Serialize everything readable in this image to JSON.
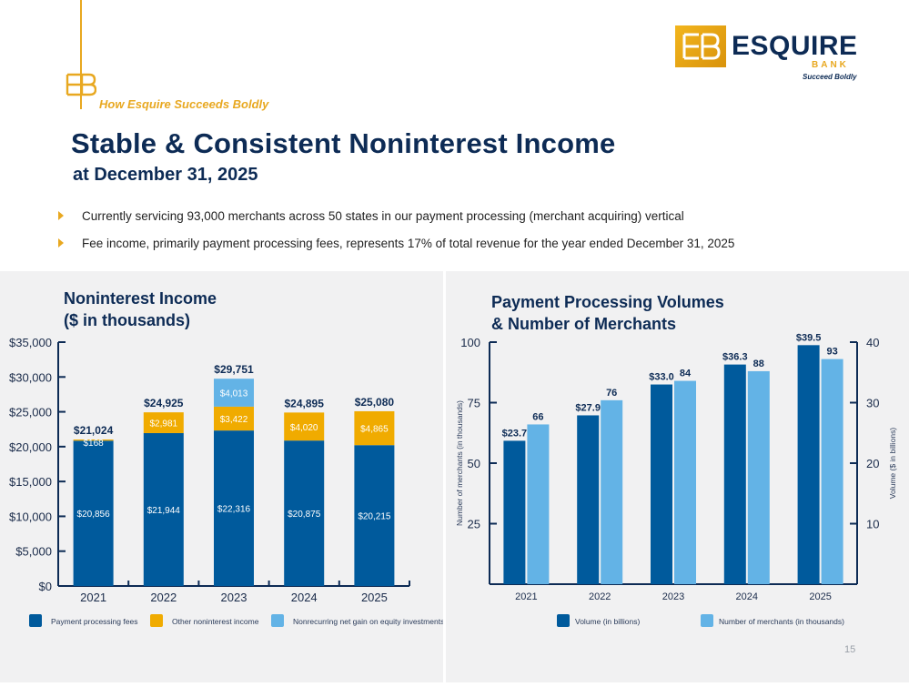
{
  "header": {
    "tagline_prefix": "How Esquire ",
    "tagline_emphasis": "Succeeds Boldly",
    "title": "Stable & Consistent Noninterest Income",
    "subtitle": "at December 31, 2025"
  },
  "logo": {
    "word": "ESQUIRE",
    "bank": "BANK",
    "tag": "Succeed Boldly"
  },
  "bullets": [
    "Currently servicing 93,000 merchants across 50 states in our payment processing (merchant acquiring) vertical",
    "Fee income, primarily payment processing fees, represents 17% of total revenue for the year ended December 31, 2025"
  ],
  "colors": {
    "dark_blue": "#005a9c",
    "gold": "#f0ab00",
    "light_blue": "#63b3e6",
    "navy": "#0d2b55",
    "accent": "#e8a820"
  },
  "chart_data": [
    {
      "type": "bar",
      "stacked": true,
      "title": "Noninterest Income\n($ in thousands)",
      "title_lines": [
        "Noninterest Income",
        "($ in thousands)"
      ],
      "categories": [
        "2021",
        "2022",
        "2023",
        "2024",
        "2025"
      ],
      "ylim": [
        0,
        35000
      ],
      "yticks": [
        "$0",
        "$5,000",
        "$10,000",
        "$15,000",
        "$20,000",
        "$25,000",
        "$30,000",
        "$35,000"
      ],
      "series": [
        {
          "name": "Payment processing fees",
          "values": [
            20856,
            21944,
            22316,
            20875,
            20215
          ],
          "labels": [
            "$20,856",
            "$21,944",
            "$22,316",
            "$20,875",
            "$20,215"
          ]
        },
        {
          "name": "Other noninterest income",
          "values": [
            168,
            2981,
            3422,
            4020,
            4865
          ],
          "labels": [
            "$168",
            "$2,981",
            "$3,422",
            "$4,020",
            "$4,865"
          ]
        },
        {
          "name": "Nonrecurring net gain on equity investments",
          "values": [
            0,
            0,
            4013,
            0,
            0
          ],
          "labels": [
            "",
            "",
            "$4,013",
            "",
            ""
          ]
        }
      ],
      "totals": [
        "$21,024",
        "$24,925",
        "$29,751",
        "$24,895",
        "$25,080"
      ],
      "legend": "bottom"
    },
    {
      "type": "bar",
      "title": "Payment Processing Volumes\n& Number of Merchants",
      "title_lines": [
        "Payment Processing Volumes",
        "& Number of Merchants"
      ],
      "categories": [
        "2021",
        "2022",
        "2023",
        "2024",
        "2025"
      ],
      "ylabel": "Number of merchants (in thousands)",
      "y2label": "Volume ($ in billions)",
      "ylim": [
        0,
        100
      ],
      "y2lim": [
        0,
        40
      ],
      "yticks": [
        "25",
        "50",
        "75",
        "100"
      ],
      "y2ticks": [
        "10",
        "20",
        "30",
        "40"
      ],
      "series": [
        {
          "name": "Volume (in billions)",
          "axis": "right",
          "values": [
            23.7,
            27.9,
            33.0,
            36.3,
            39.5
          ],
          "labels": [
            "$23.7",
            "$27.9",
            "$33.0",
            "$36.3",
            "$39.5"
          ]
        },
        {
          "name": "Number of merchants (in thousands)",
          "axis": "left",
          "values": [
            66,
            76,
            84,
            88,
            93
          ],
          "labels": [
            "66",
            "76",
            "84",
            "88",
            "93"
          ]
        }
      ],
      "legend": "bottom"
    }
  ],
  "page_number": "15"
}
